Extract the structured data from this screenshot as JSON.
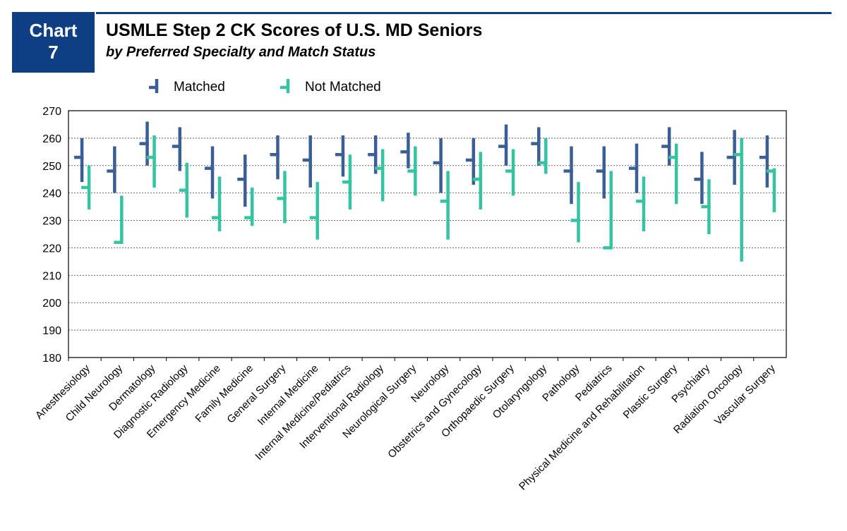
{
  "badge": {
    "line1": "Chart",
    "line2": "7"
  },
  "title": "USMLE Step 2 CK Scores of U.S. MD Seniors",
  "subtitle": "by Preferred Specialty and Match Status",
  "colors": {
    "matched": "#3b5f95",
    "not_matched": "#35c3a1",
    "badge": "#0e3f82",
    "grid": "#666666"
  },
  "chart_data": {
    "type": "high-low-mean",
    "title": "USMLE Step 2 CK Scores of U.S. MD Seniors",
    "subtitle": "by Preferred Specialty and Match Status",
    "ylim": [
      180,
      270
    ],
    "yticks": [
      180,
      190,
      200,
      210,
      220,
      230,
      240,
      250,
      260,
      270
    ],
    "grid": "horizontal dotted",
    "legend_position": "top",
    "categories": [
      "Anesthesiology",
      "Child Neurology",
      "Dermatology",
      "Diagnostic Radiology",
      "Emergency Medicine",
      "Family Medicine",
      "General Surgery",
      "Internal Medicine",
      "Internal Medicine/Pediatrics",
      "Interventional Radiology",
      "Neurological Surgery",
      "Neurology",
      "Obstetrics and Gynecology",
      "Orthopaedic Surgery",
      "Otolaryngology",
      "Pathology",
      "Pediatrics",
      "Physical Medicine and Rehabilitation",
      "Plastic Surgery",
      "Psychiatry",
      "Radiation Oncology",
      "Vascular Surgery"
    ],
    "series": [
      {
        "name": "Matched",
        "color": "#3b5f95",
        "high": [
          260,
          257,
          266,
          264,
          257,
          254,
          261,
          261,
          261,
          261,
          262,
          260,
          260,
          265,
          264,
          257,
          257,
          258,
          264,
          255,
          263,
          261
        ],
        "low": [
          244,
          240,
          250,
          248,
          238,
          235,
          245,
          242,
          246,
          247,
          249,
          240,
          243,
          250,
          250,
          236,
          238,
          240,
          250,
          236,
          243,
          242
        ],
        "mean": [
          253,
          248,
          258,
          257,
          249,
          245,
          254,
          252,
          254,
          254,
          255,
          251,
          252,
          257,
          258,
          248,
          248,
          249,
          257,
          245,
          253,
          253
        ]
      },
      {
        "name": "Not Matched",
        "color": "#35c3a1",
        "high": [
          250,
          239,
          261,
          251,
          246,
          242,
          248,
          244,
          254,
          256,
          257,
          248,
          255,
          256,
          260,
          244,
          248,
          246,
          258,
          245,
          260,
          249
        ],
        "low": [
          234,
          222,
          242,
          231,
          226,
          228,
          229,
          223,
          234,
          237,
          239,
          223,
          234,
          239,
          247,
          222,
          220,
          226,
          236,
          225,
          215,
          233
        ],
        "mean": [
          242,
          222,
          253,
          241,
          231,
          231,
          238,
          231,
          244,
          249,
          248,
          237,
          245,
          248,
          251,
          230,
          220,
          237,
          253,
          235,
          254,
          248
        ]
      }
    ]
  }
}
